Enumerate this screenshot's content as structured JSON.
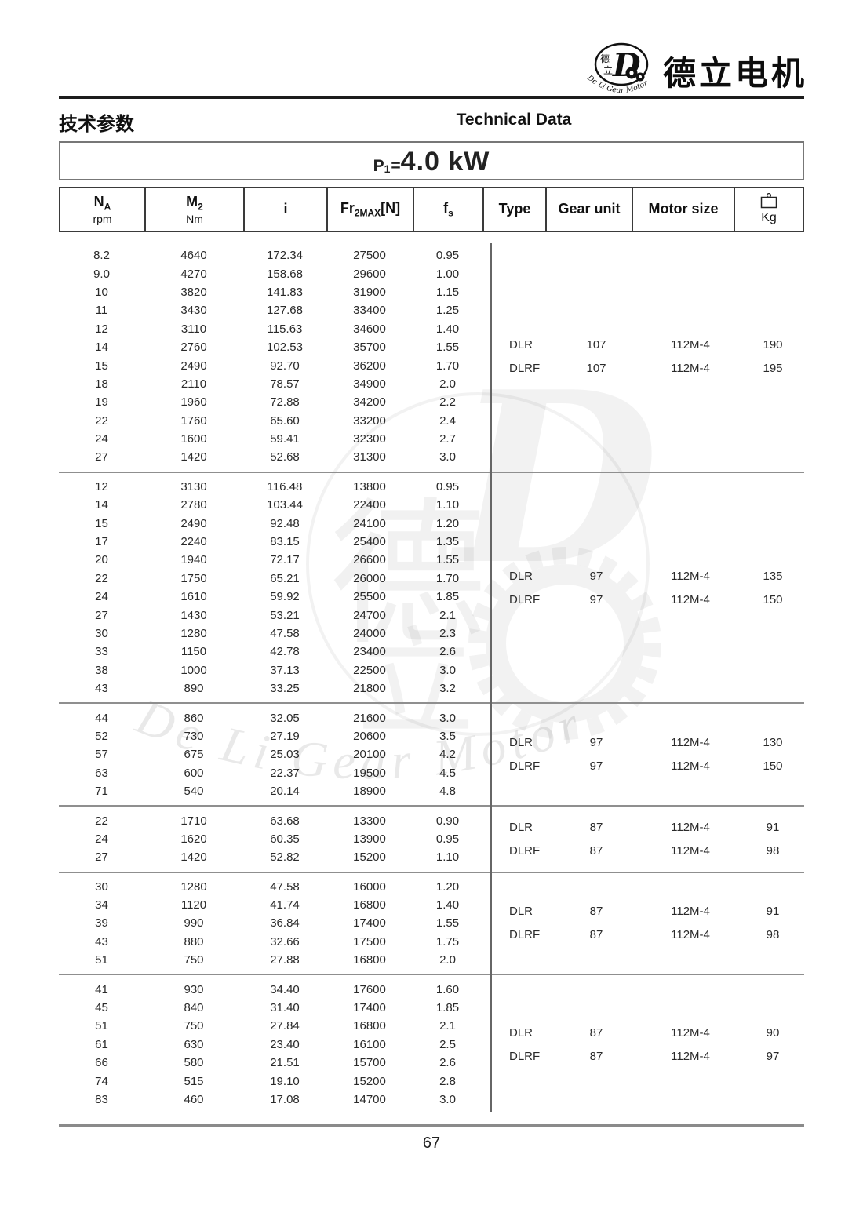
{
  "brand": {
    "name_cn": "德立电机",
    "logo_cn_1": "德",
    "logo_cn_2": "立",
    "logo_letter": "D",
    "logo_arc_text": "De Li Gear Motor"
  },
  "page": {
    "section_title_cn": "技术参数",
    "section_title_en": "Technical Data",
    "page_number": "67",
    "watermark_char_1": "德",
    "watermark_char_2": "立",
    "watermark_letter": "D",
    "watermark_text": "De Li Gear Motor"
  },
  "power": {
    "p": "P",
    "sub": "1",
    "eq": "=",
    "value": "4.0 kW"
  },
  "table": {
    "header": {
      "na_main": "N",
      "na_sub": "A",
      "na_unit": "rpm",
      "m2_main": "M",
      "m2_sub": "2",
      "m2_unit": "Nm",
      "i_label": "i",
      "fr_main": "Fr",
      "fr_sub": "2MAX",
      "fr_tail": "[N]",
      "fs_main": "f",
      "fs_sub": "s",
      "type_label": "Type",
      "gear_label": "Gear unit",
      "motor_label": "Motor size",
      "kg_label": "Kg"
    },
    "sections": [
      {
        "rows": [
          [
            "8.2",
            "4640",
            "172.34",
            "27500",
            "0.95"
          ],
          [
            "9.0",
            "4270",
            "158.68",
            "29600",
            "1.00"
          ],
          [
            "10",
            "3820",
            "141.83",
            "31900",
            "1.15"
          ],
          [
            "11",
            "3430",
            "127.68",
            "33400",
            "1.25"
          ],
          [
            "12",
            "3110",
            "115.63",
            "34600",
            "1.40"
          ],
          [
            "14",
            "2760",
            "102.53",
            "35700",
            "1.55"
          ],
          [
            "15",
            "2490",
            "92.70",
            "36200",
            "1.70"
          ],
          [
            "18",
            "2110",
            "78.57",
            "34900",
            "2.0"
          ],
          [
            "19",
            "1960",
            "72.88",
            "34200",
            "2.2"
          ],
          [
            "22",
            "1760",
            "65.60",
            "33200",
            "2.4"
          ],
          [
            "24",
            "1600",
            "59.41",
            "32300",
            "2.7"
          ],
          [
            "27",
            "1420",
            "52.68",
            "31300",
            "3.0"
          ]
        ],
        "types": [
          [
            "DLR",
            "107",
            "112M-4",
            "190"
          ],
          [
            "DLRF",
            "107",
            "112M-4",
            "195"
          ]
        ]
      },
      {
        "rows": [
          [
            "12",
            "3130",
            "116.48",
            "13800",
            "0.95"
          ],
          [
            "14",
            "2780",
            "103.44",
            "22400",
            "1.10"
          ],
          [
            "15",
            "2490",
            "92.48",
            "24100",
            "1.20"
          ],
          [
            "17",
            "2240",
            "83.15",
            "25400",
            "1.35"
          ],
          [
            "20",
            "1940",
            "72.17",
            "26600",
            "1.55"
          ],
          [
            "22",
            "1750",
            "65.21",
            "26000",
            "1.70"
          ],
          [
            "24",
            "1610",
            "59.92",
            "25500",
            "1.85"
          ],
          [
            "27",
            "1430",
            "53.21",
            "24700",
            "2.1"
          ],
          [
            "30",
            "1280",
            "47.58",
            "24000",
            "2.3"
          ],
          [
            "33",
            "1150",
            "42.78",
            "23400",
            "2.6"
          ],
          [
            "38",
            "1000",
            "37.13",
            "22500",
            "3.0"
          ],
          [
            "43",
            "890",
            "33.25",
            "21800",
            "3.2"
          ]
        ],
        "types": [
          [
            "DLR",
            "97",
            "112M-4",
            "135"
          ],
          [
            "DLRF",
            "97",
            "112M-4",
            "150"
          ]
        ]
      },
      {
        "rows": [
          [
            "44",
            "860",
            "32.05",
            "21600",
            "3.0"
          ],
          [
            "52",
            "730",
            "27.19",
            "20600",
            "3.5"
          ],
          [
            "57",
            "675",
            "25.03",
            "20100",
            "4.2"
          ],
          [
            "63",
            "600",
            "22.37",
            "19500",
            "4.5"
          ],
          [
            "71",
            "540",
            "20.14",
            "18900",
            "4.8"
          ]
        ],
        "types": [
          [
            "DLR",
            "97",
            "112M-4",
            "130"
          ],
          [
            "DLRF",
            "97",
            "112M-4",
            "150"
          ]
        ]
      },
      {
        "rows": [
          [
            "22",
            "1710",
            "63.68",
            "13300",
            "0.90"
          ],
          [
            "24",
            "1620",
            "60.35",
            "13900",
            "0.95"
          ],
          [
            "27",
            "1420",
            "52.82",
            "15200",
            "1.10"
          ]
        ],
        "types": [
          [
            "DLR",
            "87",
            "112M-4",
            "91"
          ],
          [
            "DLRF",
            "87",
            "112M-4",
            "98"
          ]
        ]
      },
      {
        "rows": [
          [
            "30",
            "1280",
            "47.58",
            "16000",
            "1.20"
          ],
          [
            "34",
            "1120",
            "41.74",
            "16800",
            "1.40"
          ],
          [
            "39",
            "990",
            "36.84",
            "17400",
            "1.55"
          ],
          [
            "43",
            "880",
            "32.66",
            "17500",
            "1.75"
          ],
          [
            "51",
            "750",
            "27.88",
            "16800",
            "2.0"
          ]
        ],
        "types": [
          [
            "DLR",
            "87",
            "112M-4",
            "91"
          ],
          [
            "DLRF",
            "87",
            "112M-4",
            "98"
          ]
        ]
      },
      {
        "rows": [
          [
            "41",
            "930",
            "34.40",
            "17600",
            "1.60"
          ],
          [
            "45",
            "840",
            "31.40",
            "17400",
            "1.85"
          ],
          [
            "51",
            "750",
            "27.84",
            "16800",
            "2.1"
          ],
          [
            "61",
            "630",
            "23.40",
            "16100",
            "2.5"
          ],
          [
            "66",
            "580",
            "21.51",
            "15700",
            "2.6"
          ],
          [
            "74",
            "515",
            "19.10",
            "15200",
            "2.8"
          ],
          [
            "83",
            "460",
            "17.08",
            "14700",
            "3.0"
          ]
        ],
        "types": [
          [
            "DLR",
            "87",
            "112M-4",
            "90"
          ],
          [
            "DLRF",
            "87",
            "112M-4",
            "97"
          ]
        ]
      }
    ]
  }
}
